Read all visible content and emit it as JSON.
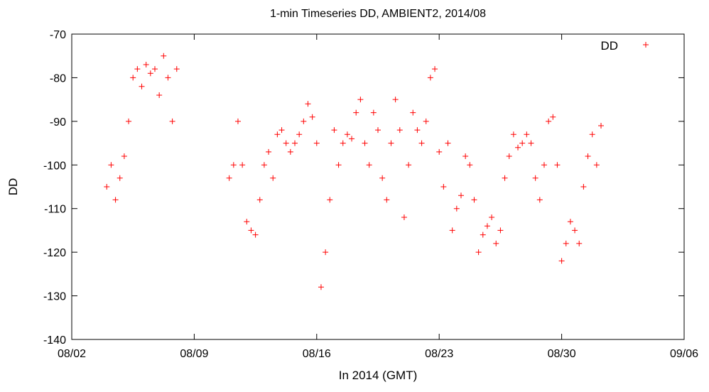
{
  "chart_data": {
    "type": "scatter",
    "title": "1-min Timeseries DD, AMBIENT2, 2014/08",
    "xlabel": "In 2014 (GMT)",
    "ylabel": "DD",
    "xlim": [
      "2014-08-02",
      "2014-09-06"
    ],
    "ylim": [
      -140,
      -70
    ],
    "x_ticks": [
      "08/02",
      "08/09",
      "08/16",
      "08/23",
      "08/30",
      "09/06"
    ],
    "y_ticks": [
      -70,
      -80,
      -90,
      -100,
      -110,
      -120,
      -130,
      -140
    ],
    "grid": false,
    "legend": {
      "position": "top-right"
    },
    "series": [
      {
        "name": "DD",
        "color": "#ff0000",
        "marker": "plus",
        "x": [
          "2014-08-04 00:00",
          "2014-08-04 06:00",
          "2014-08-04 12:00",
          "2014-08-04 18:00",
          "2014-08-05 00:00",
          "2014-08-05 06:00",
          "2014-08-05 12:00",
          "2014-08-05 18:00",
          "2014-08-06 00:00",
          "2014-08-06 06:00",
          "2014-08-06 12:00",
          "2014-08-06 18:00",
          "2014-08-07 00:00",
          "2014-08-07 06:00",
          "2014-08-07 12:00",
          "2014-08-07 18:00",
          "2014-08-08 00:00",
          "2014-08-11 00:00",
          "2014-08-11 06:00",
          "2014-08-11 12:00",
          "2014-08-11 18:00",
          "2014-08-12 00:00",
          "2014-08-12 06:00",
          "2014-08-12 12:00",
          "2014-08-12 18:00",
          "2014-08-13 00:00",
          "2014-08-13 06:00",
          "2014-08-13 12:00",
          "2014-08-13 18:00",
          "2014-08-14 00:00",
          "2014-08-14 06:00",
          "2014-08-14 12:00",
          "2014-08-14 18:00",
          "2014-08-15 00:00",
          "2014-08-15 06:00",
          "2014-08-15 12:00",
          "2014-08-15 18:00",
          "2014-08-16 00:00",
          "2014-08-16 06:00",
          "2014-08-16 12:00",
          "2014-08-16 18:00",
          "2014-08-17 00:00",
          "2014-08-17 06:00",
          "2014-08-17 12:00",
          "2014-08-17 18:00",
          "2014-08-18 00:00",
          "2014-08-18 06:00",
          "2014-08-18 12:00",
          "2014-08-18 18:00",
          "2014-08-19 00:00",
          "2014-08-19 06:00",
          "2014-08-19 12:00",
          "2014-08-19 18:00",
          "2014-08-20 00:00",
          "2014-08-20 06:00",
          "2014-08-20 12:00",
          "2014-08-20 18:00",
          "2014-08-21 00:00",
          "2014-08-21 06:00",
          "2014-08-21 12:00",
          "2014-08-21 18:00",
          "2014-08-22 00:00",
          "2014-08-22 06:00",
          "2014-08-22 12:00",
          "2014-08-22 18:00",
          "2014-08-23 00:00",
          "2014-08-23 06:00",
          "2014-08-23 12:00",
          "2014-08-23 18:00",
          "2014-08-24 00:00",
          "2014-08-24 06:00",
          "2014-08-24 12:00",
          "2014-08-24 18:00",
          "2014-08-25 00:00",
          "2014-08-25 06:00",
          "2014-08-25 12:00",
          "2014-08-25 18:00",
          "2014-08-26 00:00",
          "2014-08-26 06:00",
          "2014-08-26 12:00",
          "2014-08-26 18:00",
          "2014-08-27 00:00",
          "2014-08-27 06:00",
          "2014-08-27 12:00",
          "2014-08-27 18:00",
          "2014-08-28 00:00",
          "2014-08-28 06:00",
          "2014-08-28 12:00",
          "2014-08-28 18:00",
          "2014-08-29 00:00",
          "2014-08-29 06:00",
          "2014-08-29 12:00",
          "2014-08-29 18:00",
          "2014-08-30 00:00",
          "2014-08-30 06:00",
          "2014-08-30 12:00",
          "2014-08-30 18:00",
          "2014-08-31 00:00",
          "2014-08-31 06:00",
          "2014-08-31 12:00",
          "2014-08-31 18:00",
          "2014-09-01 00:00",
          "2014-09-01 06:00"
        ],
        "y": [
          -105,
          -100,
          -108,
          -103,
          -98,
          -90,
          -80,
          -78,
          -82,
          -77,
          -79,
          -78,
          -84,
          -75,
          -80,
          -90,
          -78,
          -103,
          -100,
          -90,
          -100,
          -113,
          -115,
          -116,
          -108,
          -100,
          -97,
          -103,
          -93,
          -92,
          -95,
          -97,
          -95,
          -93,
          -90,
          -86,
          -89,
          -95,
          -128,
          -120,
          -108,
          -92,
          -100,
          -95,
          -93,
          -94,
          -88,
          -85,
          -95,
          -100,
          -88,
          -92,
          -103,
          -108,
          -95,
          -85,
          -92,
          -112,
          -100,
          -88,
          -92,
          -95,
          -90,
          -80,
          -78,
          -97,
          -105,
          -95,
          -115,
          -110,
          -107,
          -98,
          -100,
          -108,
          -120,
          -116,
          -114,
          -112,
          -118,
          -115,
          -103,
          -98,
          -93,
          -96,
          -95,
          -93,
          -95,
          -103,
          -108,
          -100,
          -90,
          -89,
          -100,
          -122,
          -118,
          -113,
          -115,
          -118,
          -105,
          -98,
          -93,
          -100,
          -91
        ]
      }
    ]
  }
}
